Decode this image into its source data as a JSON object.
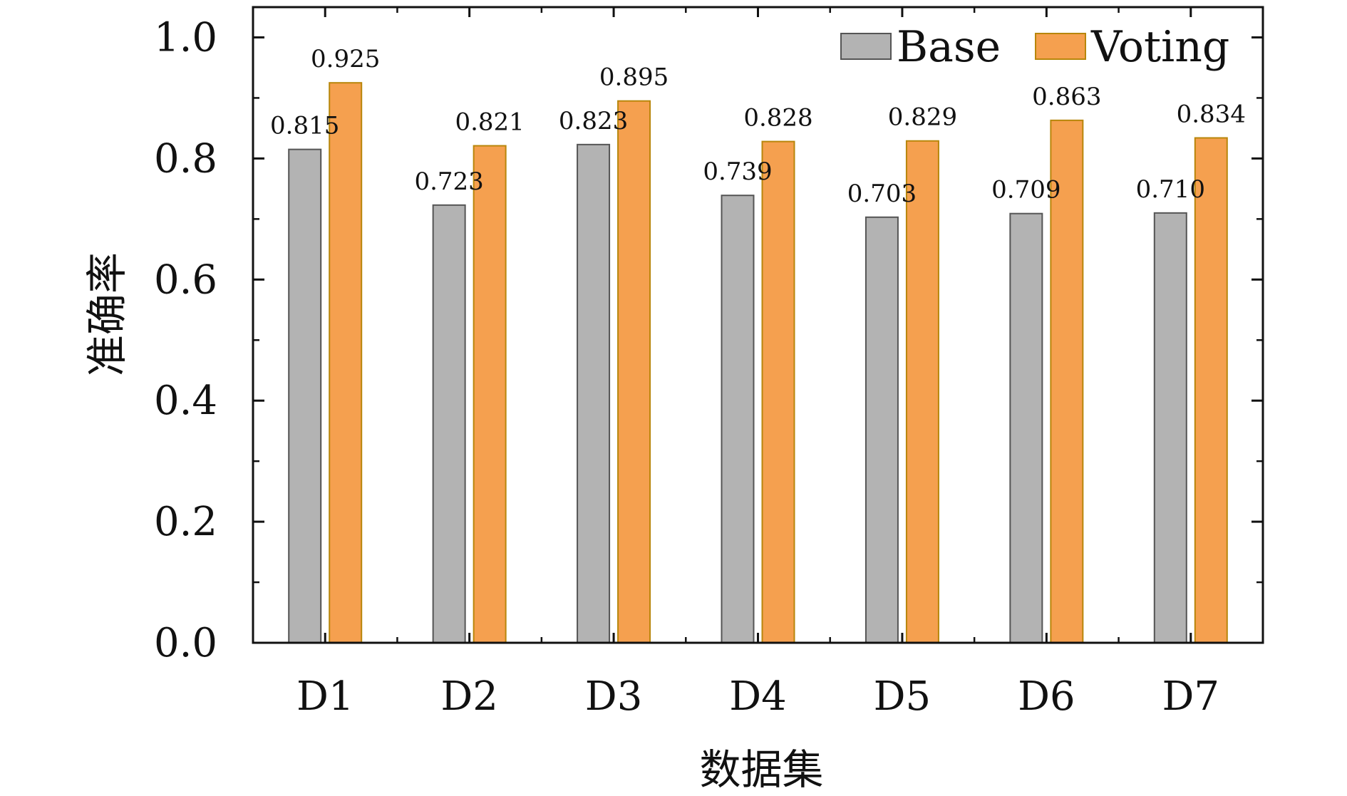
{
  "chart_data": {
    "type": "bar",
    "categories": [
      "D1",
      "D2",
      "D3",
      "D4",
      "D5",
      "D6",
      "D7"
    ],
    "series": [
      {
        "name": "Base",
        "values": [
          0.815,
          0.723,
          0.823,
          0.739,
          0.703,
          0.709,
          0.71
        ],
        "labels": [
          "0.815",
          "0.723",
          "0.823",
          "0.739",
          "0.703",
          "0.709",
          "0.710"
        ],
        "color": "#b3b3b3",
        "stroke": "#555555"
      },
      {
        "name": "Voting",
        "values": [
          0.925,
          0.821,
          0.895,
          0.828,
          0.829,
          0.863,
          0.834
        ],
        "labels": [
          "0.925",
          "0.821",
          "0.895",
          "0.828",
          "0.829",
          "0.863",
          "0.834"
        ],
        "color": "#f5a04f",
        "stroke": "#b8860b"
      }
    ],
    "xlabel": "数据集",
    "ylabel": "准确率",
    "ylim": [
      0.0,
      1.05
    ],
    "yticks": [
      0.0,
      0.2,
      0.4,
      0.6,
      0.8,
      1.0
    ],
    "ytick_labels": [
      "0.0",
      "0.2",
      "0.4",
      "0.6",
      "0.8",
      "1.0"
    ],
    "grid": false,
    "legend_position": "top-right"
  }
}
